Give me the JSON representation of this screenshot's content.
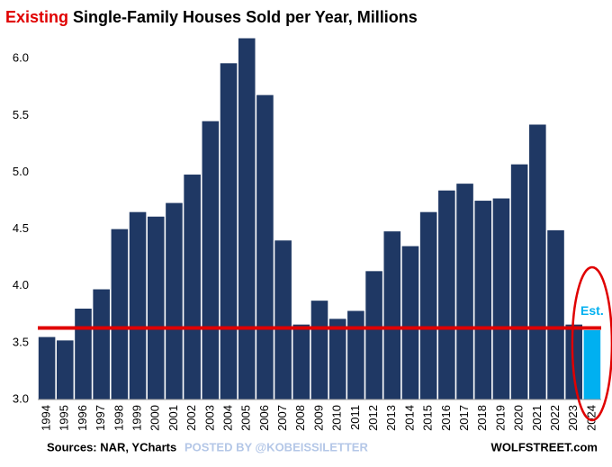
{
  "chart_data": {
    "type": "bar",
    "title_highlight": "Existing",
    "title": "Single-Family Houses Sold per Year, Millions",
    "categories": [
      "1994",
      "1995",
      "1996",
      "1997",
      "1998",
      "1999",
      "2000",
      "2001",
      "2002",
      "2003",
      "2004",
      "2005",
      "2006",
      "2007",
      "2008",
      "2009",
      "2010",
      "2011",
      "2012",
      "2013",
      "2014",
      "2015",
      "2016",
      "2017",
      "2018",
      "2019",
      "2020",
      "2021",
      "2022",
      "2023",
      "2024"
    ],
    "values": [
      3.55,
      3.52,
      3.8,
      3.97,
      4.5,
      4.65,
      4.61,
      4.73,
      4.98,
      5.45,
      5.96,
      6.18,
      5.68,
      4.4,
      3.66,
      3.87,
      3.71,
      3.78,
      4.13,
      4.48,
      4.35,
      4.65,
      4.84,
      4.9,
      4.75,
      4.77,
      5.07,
      5.42,
      4.49,
      3.66,
      3.61
    ],
    "colors": [
      "#1f3864",
      "#1f3864",
      "#1f3864",
      "#1f3864",
      "#1f3864",
      "#1f3864",
      "#1f3864",
      "#1f3864",
      "#1f3864",
      "#1f3864",
      "#1f3864",
      "#1f3864",
      "#1f3864",
      "#1f3864",
      "#1f3864",
      "#1f3864",
      "#1f3864",
      "#1f3864",
      "#1f3864",
      "#1f3864",
      "#1f3864",
      "#1f3864",
      "#1f3864",
      "#1f3864",
      "#1f3864",
      "#1f3864",
      "#1f3864",
      "#1f3864",
      "#1f3864",
      "#1f3864",
      "#00b0f0"
    ],
    "ylim": [
      3.0,
      6.2
    ],
    "yticks": [
      {
        "value": 3.0,
        "label": "3.0"
      },
      {
        "value": 3.5,
        "label": "3.5"
      },
      {
        "value": 4.0,
        "label": "4.0"
      },
      {
        "value": 4.5,
        "label": "4.5"
      },
      {
        "value": 5.0,
        "label": "5.0"
      },
      {
        "value": 5.5,
        "label": "5.5"
      },
      {
        "value": 6.0,
        "label": "6.0"
      }
    ],
    "reference_line": 3.63,
    "reference_color": "#e00000",
    "estimate_label": "Est.",
    "source": "Sources: NAR, YCharts",
    "watermark": "POSTED BY @KOBEISSILETTER",
    "credit": "WOLFSTREET.com"
  }
}
